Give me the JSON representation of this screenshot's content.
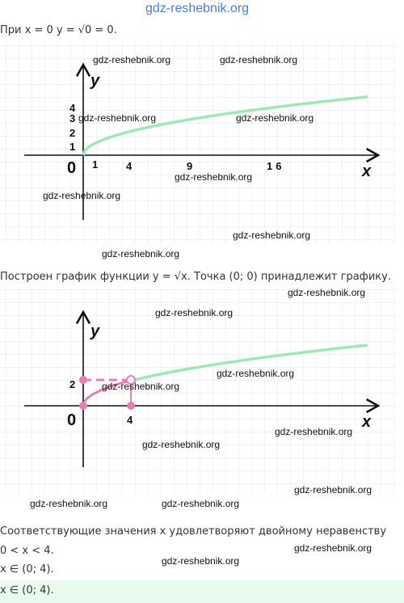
{
  "header": {
    "site": "gdz-reshebnik.org"
  },
  "lines": [
    "При x = 0 y = √0 = 0.",
    "Построен график функции y = √x. Точка (0; 0) принадлежит графику.",
    "Соответствующие значения x удовлетворяют двойному неравенству 0 < x < 4.",
    "x ∈ (0; 4).",
    "x ∈ (0; 4)."
  ],
  "graph1": {
    "axis_x": "x",
    "axis_y": "y",
    "origin": "0",
    "x_labels": [
      "1",
      "4",
      "9",
      "16"
    ],
    "y_labels": [
      "1",
      "2",
      "3",
      "4"
    ]
  },
  "graph2": {
    "axis_x": "x",
    "axis_y": "y",
    "origin": "0",
    "x_labels": [
      "4"
    ],
    "y_labels": [
      "2"
    ]
  },
  "watermarks": [
    "gdz-reshebnik.org",
    "gdz-reshebnik.org",
    "gdz-reshebnik.org",
    "gdz-reshebnik.org",
    "gdz-reshebnik.org",
    "gdz-reshebnik.org",
    "gdz-reshebnik.org",
    "gdz-reshebnik.org",
    "gdz-reshebnik.org",
    "gdz-reshebnik.org",
    "gdz-reshebnik.org",
    "gdz-reshebnik.org",
    "gdz-reshebnik.org",
    "gdz-reshebnik.org",
    "gdz-reshebnik.org",
    "gdz-reshebnik.org",
    "gdz-reshebnik.org",
    "gdz-reshebnik.org",
    "gdz-reshebnik.org"
  ]
}
